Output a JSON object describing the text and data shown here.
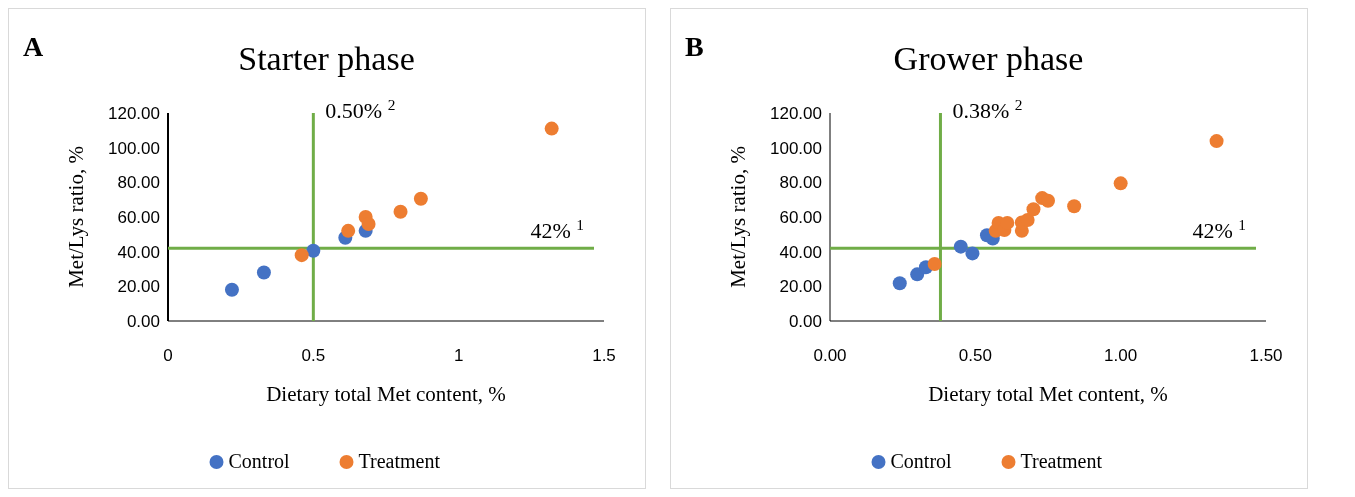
{
  "chart_data": [
    {
      "type": "scatter",
      "title": "Starter phase",
      "xlabel": "Dietary total Met content, %",
      "ylabel": "Met/Lys ratio, %",
      "annotations": [
        "A"
      ],
      "xlim": [
        0,
        1.5
      ],
      "xticks": [
        0,
        0.5,
        1,
        1.5
      ],
      "ylim": [
        0,
        120
      ],
      "yticks": [
        {
          "value": 0,
          "label": "0.00"
        },
        {
          "value": 20,
          "label": "20.00"
        },
        {
          "value": 40,
          "label": "40.00"
        },
        {
          "value": 60,
          "label": "60.00"
        },
        {
          "value": 80,
          "label": "80.00"
        },
        {
          "value": 100,
          "label": "100.00"
        },
        {
          "value": 120,
          "label": "120.00"
        }
      ],
      "marker": "circle",
      "legend": "bottom",
      "grid": false,
      "ref_lines": [
        {
          "axis": "x",
          "value": 0.5,
          "label": "0.50% $^{2}$",
          "color": "#70ad47"
        },
        {
          "axis": "y",
          "value": 42,
          "label": "42% $^{1}$",
          "color": "#70ad47"
        }
      ],
      "series": [
        {
          "name": "Control",
          "color": "#4472c4",
          "x": [
            0.22,
            0.33,
            0.5,
            0.61,
            0.68
          ],
          "values": [
            18,
            28,
            40.5,
            48,
            52
          ]
        },
        {
          "name": "Treatment",
          "color": "#ed7d31",
          "x": [
            0.46,
            0.62,
            0.68,
            0.69,
            0.8,
            0.87,
            1.32
          ],
          "values": [
            38,
            52,
            60,
            56,
            63,
            70.5,
            111
          ]
        }
      ]
    },
    {
      "type": "scatter",
      "title": "Grower phase",
      "xlabel": "Dietary total Met content, %",
      "ylabel": "Met/Lys ratio, %",
      "annotations": [
        "B"
      ],
      "xlim": [
        0,
        1.5
      ],
      "xticks": [
        {
          "value": 0,
          "label": "0.00"
        },
        {
          "value": 0.5,
          "label": "0.50"
        },
        {
          "value": 1,
          "label": "1.00"
        },
        {
          "value": 1.5,
          "label": "1.50"
        }
      ],
      "ylim": [
        0,
        120
      ],
      "yticks": [
        {
          "value": 0,
          "label": "0.00"
        },
        {
          "value": 20,
          "label": "20.00"
        },
        {
          "value": 40,
          "label": "40.00"
        },
        {
          "value": 60,
          "label": "60.00"
        },
        {
          "value": 80,
          "label": "80.00"
        },
        {
          "value": 100,
          "label": "100.00"
        },
        {
          "value": 120,
          "label": "120.00"
        }
      ],
      "marker": "circle",
      "legend": "bottom",
      "grid": false,
      "ref_lines": [
        {
          "axis": "x",
          "value": 0.38,
          "label": "0.38% $^{2}$",
          "color": "#70ad47"
        },
        {
          "axis": "y",
          "value": 42,
          "label": "42% $^{1}$",
          "color": "#70ad47"
        }
      ],
      "series": [
        {
          "name": "Control",
          "color": "#4472c4",
          "x": [
            0.24,
            0.3,
            0.33,
            0.45,
            0.49,
            0.54,
            0.56
          ],
          "values": [
            21.8,
            26.9,
            31,
            42.9,
            39,
            49.5,
            47.6
          ]
        },
        {
          "name": "Treatment",
          "color": "#ed7d31",
          "x": [
            0.36,
            0.57,
            0.58,
            0.6,
            0.61,
            0.66,
            0.66,
            0.68,
            0.7,
            0.73,
            0.75,
            0.84,
            1.0,
            1.33
          ],
          "values": [
            32.9,
            52,
            56.6,
            52.5,
            56.6,
            52,
            56.8,
            58.3,
            64.5,
            70.9,
            69.4,
            66.2,
            79.4,
            103.8
          ]
        }
      ]
    }
  ]
}
